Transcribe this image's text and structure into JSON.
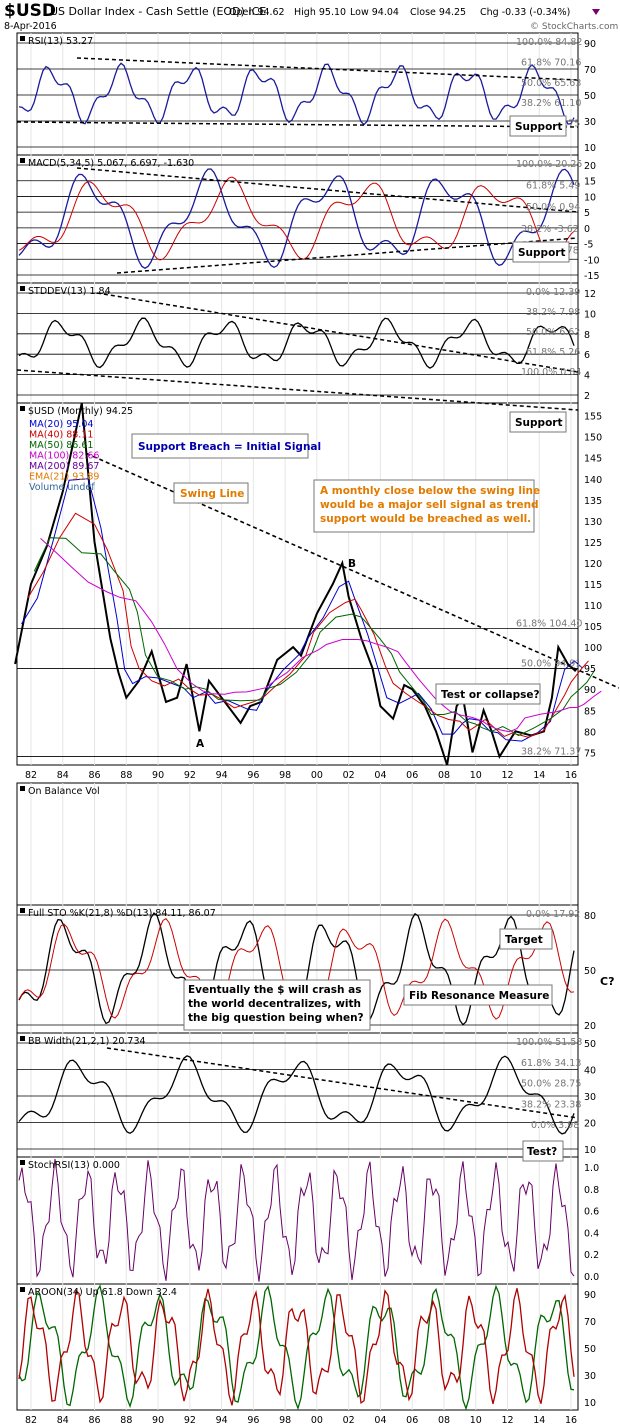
{
  "header": {
    "symbol": "$USD",
    "name": "US Dollar Index - Cash Settle (EOD) ICE",
    "date": "8-Apr-2016",
    "open": "Open 94.62",
    "high": "High 95.10",
    "low": "Low 94.04",
    "close": "Close 94.25",
    "chg": "Chg -0.33 (-0.34%)",
    "source": "© StockCharts.com"
  },
  "colors": {
    "price": "#000000",
    "indicator": "#1a1a9e",
    "signal": "#cc0000",
    "macd_hist": "#6b6b9a",
    "stoch": "#660066",
    "aroon_up": "#006600",
    "aroon_down": "#b00000",
    "annotation_blue": "#0000aa",
    "annotation_orange": "#e07b00",
    "annotation_white": "#ffffff"
  },
  "x_axis": {
    "labels_top": [
      "82",
      "84",
      "86",
      "88",
      "90",
      "92",
      "94",
      "96",
      "98",
      "00",
      "02",
      "04",
      "06",
      "08",
      "10",
      "12",
      "14",
      "16"
    ],
    "labels_bottom": [
      "82",
      "84",
      "86",
      "88",
      "90",
      "92",
      "94",
      "96",
      "98",
      "00",
      "02",
      "04",
      "06",
      "08",
      "10",
      "12",
      "14",
      "16"
    ]
  },
  "panels": {
    "rsi": {
      "label": "RSI(13) 53.27",
      "right_ticks": [
        "90",
        "70",
        "50",
        "30",
        "10"
      ],
      "fib_labels": [
        "100.0% 84.82",
        "61.8% 70.16",
        "50.0% 65.63",
        "38.2% 61.10",
        "0.0% 18.75"
      ],
      "callout": "Support"
    },
    "macd": {
      "label": "MACD(5,34,5) 5.067, 6.697, -1.630",
      "right_ticks": [
        "20",
        "15",
        "10",
        "5",
        "0",
        "-5",
        "-10",
        "-15"
      ],
      "fib_labels": [
        "100.0% 20.25",
        "61.8% 5.49",
        "50.0% 0.94",
        "38.2% -3.62",
        "0.0% -17.78"
      ],
      "callout": "Support"
    },
    "stddev": {
      "label": "STDDEV(13) 1.84",
      "right_ticks": [
        "12",
        "10",
        "8",
        "6",
        "4",
        "2"
      ],
      "fib_labels": [
        "0.0% 12.39",
        "38.2% 7.98",
        "50.0% 6.62",
        "61.8% 5.26",
        "100.0% 0.84"
      ],
      "callout": "Support"
    },
    "price": {
      "label": "$USD (Monthly) 94.25",
      "legend": [
        {
          "text": "MA(20) 95.04",
          "color": "#0000cc"
        },
        {
          "text": "MA(40) 88.11",
          "color": "#cc0000"
        },
        {
          "text": "MA(50) 86.61",
          "color": "#006600"
        },
        {
          "text": "MA(100) 82.66",
          "color": "#cc00cc"
        },
        {
          "text": "MA(200) 89.67",
          "color": "#660099"
        },
        {
          "text": "EMA(21) 93.89",
          "color": "#e07b00"
        },
        {
          "text": "Volume undef",
          "color": "#336699"
        }
      ],
      "right_ticks": [
        "155",
        "150",
        "145",
        "140",
        "135",
        "130",
        "125",
        "120",
        "115",
        "110",
        "105",
        "100",
        "95",
        "90",
        "85",
        "80",
        "75"
      ],
      "fib_labels": [
        "61.8% 104.40",
        "50.0% 94.91",
        "38.2% 71.37"
      ],
      "annotations": {
        "support_breach": "Support Breach = Initial Signal",
        "swing_line": "Swing Line",
        "sell_signal": "A monthly close below the swing line would be a major sell signal as trend support would be breached as well.",
        "test_or_collapse": "Test or collapse?",
        "point_a": "A",
        "point_b": "B"
      }
    },
    "obv": {
      "label": "On Balance Vol"
    },
    "sto": {
      "label": "Full STO %K(21,8) %D(13) 84.11, 86.07",
      "right_ticks": [
        "80",
        "50",
        "20"
      ],
      "fib_labels": [
        "0.0% 17.92"
      ],
      "annotations": {
        "target": "Target",
        "crash": "Eventually the $ will crash as the world decentralizes, with the big question being when?",
        "fib": "Fib Resonance Measure",
        "c": "C?"
      }
    },
    "bbw": {
      "label": "BB Width(21,2,1) 20.734",
      "right_ticks": [
        "50",
        "40",
        "30",
        "20",
        "10"
      ],
      "fib_labels": [
        "100.0% 51.53",
        "61.8% 34.13",
        "50.0% 28.75",
        "38.2% 23.38",
        "0.0% 3.98"
      ],
      "callout": "Test?"
    },
    "stochrsi": {
      "label": "StochRSI(13) 0.000",
      "right_ticks": [
        "1.0",
        "0.8",
        "0.6",
        "0.4",
        "0.2",
        "0.0"
      ]
    },
    "aroon": {
      "label": "AROON(34) Up 61.8 Down 32.4",
      "right_ticks": [
        "90",
        "70",
        "50",
        "30",
        "10"
      ]
    }
  },
  "chart_data": {
    "type": "line",
    "title": "$USD US Dollar Index - Cash Settle (EOD) ICE (Monthly)",
    "x_label": "",
    "y_label": "",
    "xlim": [
      1981,
      2016.5
    ],
    "ylim": [
      72,
      158
    ],
    "series": [
      {
        "name": "$USD (Monthly)",
        "x": [
          1981,
          1982,
          1983,
          1984,
          1985.2,
          1986,
          1987,
          1987.5,
          1988,
          1988.8,
          1989.6,
          1990.5,
          1991.2,
          1991.8,
          1992.6,
          1993.2,
          1994,
          1995.2,
          1995.8,
          1996.5,
          1997.5,
          1998.5,
          1999,
          2000,
          2001,
          2001.6,
          2002,
          2002.8,
          2003.5,
          2004,
          2004.8,
          2005.5,
          2006,
          2006.8,
          2007.5,
          2008.2,
          2008.8,
          2009.2,
          2009.8,
          2010.5,
          2011,
          2011.5,
          2012.5,
          2013.5,
          2014.3,
          2014.8,
          2015.2,
          2015.8,
          2016.3
        ],
        "y": [
          96,
          115,
          124,
          137,
          158,
          125,
          102,
          94,
          88,
          92,
          99,
          87,
          88,
          96,
          80,
          92,
          88,
          82,
          86,
          87,
          97,
          100,
          98,
          108,
          115,
          120,
          112,
          102,
          95,
          86,
          83,
          91,
          90,
          86,
          80,
          72,
          86,
          88,
          75,
          85,
          80,
          74,
          80,
          79,
          80,
          88,
          100,
          96,
          94.25
        ]
      }
    ],
    "levels": {
      "fib_61_8": 104.4,
      "fib_50_0": 94.91,
      "fib_38_2": 71.37
    },
    "swing_line": {
      "from": [
        1985.5,
        146
      ],
      "to": [
        2016.5,
        91
      ]
    }
  }
}
